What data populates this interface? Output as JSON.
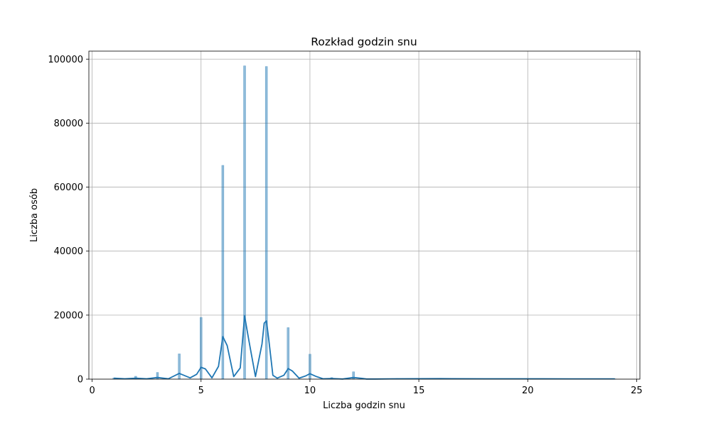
{
  "chart_data": {
    "type": "bar",
    "title": "Rozkład godzin snu",
    "xlabel": "Liczba godzin snu",
    "ylabel": "Liczba osób",
    "xlim": [
      -0.15,
      25.15
    ],
    "ylim": [
      0,
      102500
    ],
    "xticks": [
      0,
      5,
      10,
      15,
      20,
      25
    ],
    "yticks": [
      0,
      20000,
      40000,
      60000,
      80000,
      100000
    ],
    "grid": true,
    "colors": {
      "bar": "#1f77b4",
      "kde": "#1f77b4",
      "grid": "#b0b0b0"
    },
    "histogram": {
      "x": [
        1,
        2,
        3,
        4,
        5,
        6,
        7,
        8,
        9,
        10,
        11,
        12,
        13,
        14,
        15,
        16,
        18,
        20,
        24
      ],
      "values": [
        400,
        900,
        2100,
        7900,
        19300,
        66800,
        97900,
        97700,
        16100,
        7800,
        500,
        2300,
        100,
        200,
        150,
        200,
        100,
        100,
        100
      ]
    },
    "kde": {
      "x": [
        1,
        1.5,
        2,
        2.5,
        3,
        3.5,
        4,
        4.5,
        4.8,
        5,
        5.2,
        5.5,
        5.8,
        6,
        6.2,
        6.5,
        6.8,
        7,
        7.2,
        7.5,
        7.8,
        7.9,
        8,
        8.1,
        8.3,
        8.5,
        8.8,
        9,
        9.2,
        9.5,
        9.8,
        10,
        10.3,
        10.6,
        11,
        11.5,
        12,
        12.3,
        12.6,
        13,
        14,
        16,
        18,
        20,
        22,
        24
      ],
      "values": [
        300,
        100,
        300,
        100,
        500,
        100,
        1800,
        400,
        1500,
        3700,
        3200,
        400,
        4000,
        13300,
        10500,
        800,
        3500,
        19800,
        12000,
        800,
        11000,
        17500,
        18200,
        13000,
        1200,
        300,
        1200,
        3300,
        2500,
        300,
        1000,
        1700,
        800,
        100,
        200,
        50,
        500,
        300,
        50,
        50,
        100,
        150,
        100,
        100,
        80,
        80
      ]
    }
  }
}
